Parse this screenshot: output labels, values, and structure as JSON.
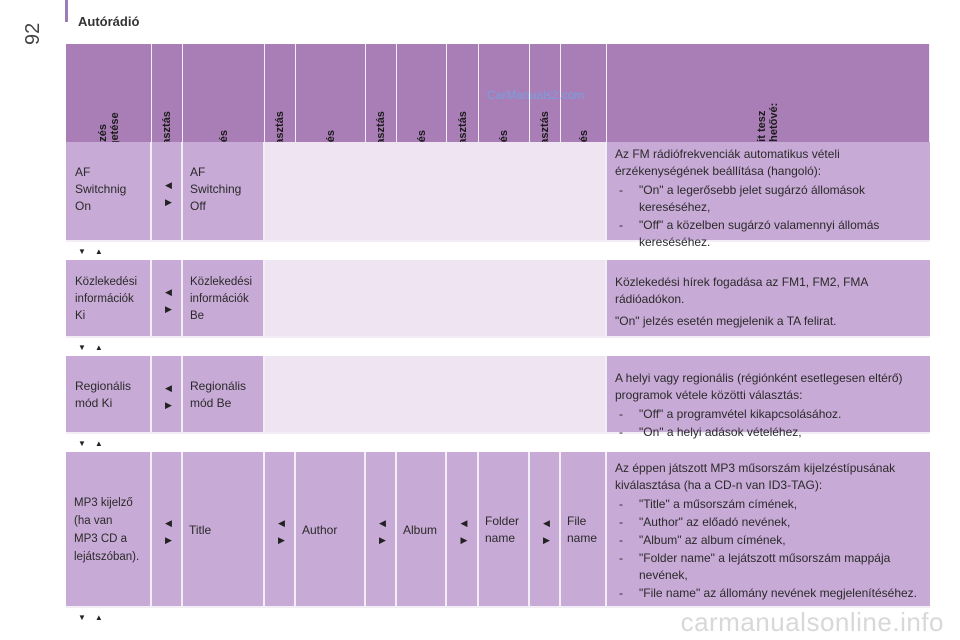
{
  "header": {
    "section_title": "Autórádió",
    "page_number": "92"
  },
  "columns": [
    "Kijelzés\ngörgetése",
    "Kiválasztás",
    "Kijelzés",
    "Kiválasztás",
    "Kijelzés",
    "Kiválasztás",
    "Kijelzés",
    "Kiválasztás",
    "Kijelzés",
    "Kiválasztás",
    "Kijelzés",
    "Mit tesz\nlehetővé:"
  ],
  "rows": [
    {
      "display1": "AF\nSwitchnig\nOn",
      "display2": "AF\nSwitching\nOff",
      "description": "Az FM rádiófrekvenciák automatikus vételi érzékenységének beállítása (hangoló):",
      "bullets": [
        "\"On\" a legerősebb jelet sugárzó állomások kereséséhez,",
        "\"Off\" a közelben sugárzó valamennyi állomás kereséséhez."
      ]
    },
    {
      "display1": "Közlekedési\ninformációk\nKi",
      "display2": "Közlekedési\ninformációk\nBe",
      "description": "Közlekedési hírek fogadása az FM1, FM2, FMA rádióadókon.",
      "description2": "\"On\" jelzés esetén megjelenik a TA felirat.",
      "bullets": []
    },
    {
      "display1": "Regionális\nmód Ki",
      "display2": "Regionális\nmód Be",
      "description": "A helyi vagy regionális (régiónként esetlegesen eltérő) programok vétele közötti választás:",
      "bullets": [
        "\"Off\" a programvétel kikapcsolásához.",
        "\"On\" a helyi adások vételéhez,"
      ]
    },
    {
      "display1": "MP3 kijelző\n(ha van\nMP3 CD a\nlejátszóban).",
      "options": [
        "Title",
        "Author",
        "Album",
        "Folder\nname",
        "File\nname"
      ],
      "description": "Az éppen játszott MP3 műsorszám kijelzéstípusának kiválasztása (ha a CD-n van ID3-TAG):",
      "bullets": [
        "\"Title\" a műsorszám címének,",
        "\"Author\" az előadó nevének,",
        "\"Album\" az album címének,",
        "\"Folder name\" a lejátszott műsorszám mappája nevének,",
        "\"File name\" az állomány nevének megjelenítéséhez."
      ]
    }
  ],
  "icons": {
    "select": "left-right-arrows-icon",
    "scroll": "down-up-arrows-icon"
  },
  "glyphs": {
    "left": "◀",
    "right": "▶",
    "down": "▼",
    "up": "▲"
  },
  "watermark": {
    "top": "CarManuals2.com",
    "bottom": "carmanualsonline.info"
  },
  "colors": {
    "header": "#a97db6",
    "cell": "#c8aad6",
    "light": "#efe4f1"
  }
}
